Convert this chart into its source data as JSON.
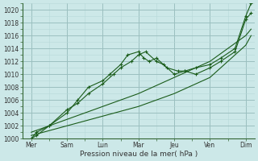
{
  "xlabel": "Pression niveau de la mer( hPa )",
  "bg_color": "#cce8e8",
  "grid_major_color": "#9bbfbf",
  "grid_minor_color": "#b8d8d8",
  "line_color": "#1a5c1a",
  "ylim": [
    1000,
    1021
  ],
  "ytick_step": 2,
  "x_labels": [
    "Mer",
    "Sam",
    "Lun",
    "Mar",
    "Jeu",
    "Ven",
    "Dim"
  ],
  "x_positions": [
    0,
    1,
    2,
    3,
    4,
    5,
    6
  ],
  "series": [
    {
      "x": [
        0,
        0.15,
        0.5,
        1.0,
        1.3,
        1.6,
        2.0,
        2.2,
        2.5,
        2.7,
        3.0,
        3.15,
        3.3,
        3.5,
        3.8,
        4.1,
        4.3,
        4.6,
        5.0,
        5.3,
        5.7,
        6.0,
        6.15
      ],
      "y": [
        1000,
        1000.5,
        1002,
        1004,
        1006,
        1008,
        1009,
        1010,
        1011.5,
        1013,
        1013.5,
        1012.5,
        1012,
        1012.5,
        1011,
        1010.5,
        1010.5,
        1010,
        1011,
        1012,
        1013.5,
        1018.5,
        1019.5
      ],
      "marker": true
    },
    {
      "x": [
        0,
        0.15,
        0.5,
        1.0,
        1.3,
        1.6,
        2.0,
        2.3,
        2.5,
        2.8,
        3.0,
        3.2,
        3.5,
        3.7,
        4.0,
        4.3,
        4.6,
        5.0,
        5.3,
        5.7,
        6.0,
        6.15
      ],
      "y": [
        1000,
        1001,
        1002,
        1004.5,
        1005.5,
        1007,
        1008.5,
        1010,
        1011,
        1012,
        1013,
        1013.5,
        1012,
        1011.5,
        1010,
        1010.5,
        1011,
        1011.5,
        1012.5,
        1014,
        1019,
        1021
      ],
      "marker": true
    },
    {
      "x": [
        0,
        1.0,
        2.0,
        3.0,
        4.0,
        5.0,
        6.0,
        6.15
      ],
      "y": [
        1001,
        1003,
        1005,
        1007,
        1009.5,
        1012,
        1016,
        1017
      ],
      "marker": false
    },
    {
      "x": [
        0,
        1.0,
        2.0,
        3.0,
        4.0,
        5.0,
        6.0,
        6.15
      ],
      "y": [
        1000.5,
        1002,
        1003.5,
        1005,
        1007,
        1009.5,
        1014.5,
        1016
      ],
      "marker": false
    }
  ]
}
